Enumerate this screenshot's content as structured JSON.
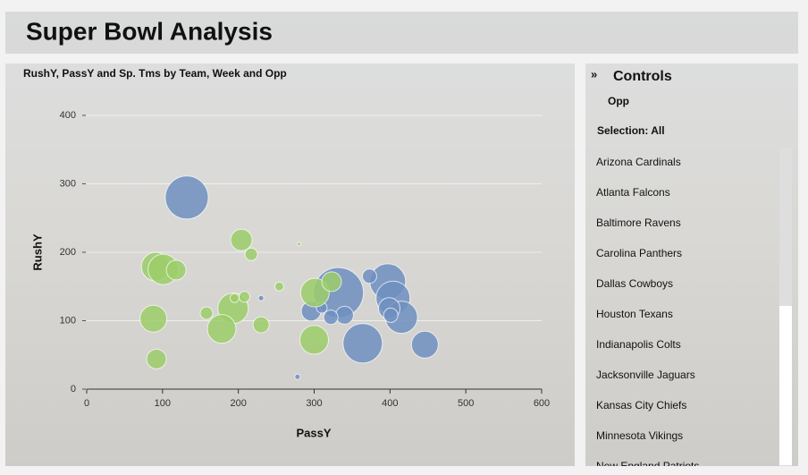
{
  "header": {
    "title": "Super Bowl Analysis"
  },
  "chart_data": {
    "type": "scatter",
    "title": "RushY, PassY and Sp. Tms by Team, Week and Opp",
    "xlabel": "PassY",
    "ylabel": "RushY",
    "xlim": [
      0,
      600
    ],
    "xticks": [
      0,
      100,
      200,
      300,
      400,
      500,
      600
    ],
    "ylim": [
      0,
      400
    ],
    "yticks": [
      0,
      100,
      200,
      300,
      400
    ],
    "grid": true,
    "series": [
      {
        "color": "#6f8fbf",
        "x": [
          132,
          332,
          364,
          397,
          404,
          415,
          446,
          373,
          340,
          296,
          322,
          399,
          401,
          278,
          230,
          310
        ],
        "y": [
          280,
          141,
          67,
          157,
          133,
          105,
          65,
          165,
          108,
          114,
          105,
          118,
          108,
          18,
          133,
          119
        ],
        "sizes": [
          24,
          28,
          22,
          20,
          19,
          18,
          15,
          8,
          10,
          11,
          8,
          12,
          8,
          3,
          3,
          6
        ]
      },
      {
        "color": "#9ccc6a",
        "x": [
          91,
          101,
          118,
          204,
          217,
          193,
          178,
          88,
          92,
          158,
          208,
          195,
          230,
          254,
          280,
          301,
          300,
          323
        ],
        "y": [
          179,
          175,
          174,
          218,
          197,
          118,
          88,
          103,
          44,
          111,
          135,
          133,
          94,
          150,
          212,
          141,
          72,
          157
        ],
        "sizes": [
          16,
          17,
          11,
          12,
          7,
          17,
          16,
          15,
          11,
          7,
          6,
          5,
          9,
          5,
          2,
          16,
          16,
          11
        ]
      }
    ]
  },
  "controls": {
    "title": "Controls",
    "field": "Opp",
    "selection": "Selection: All",
    "items": [
      "Arizona Cardinals",
      "Atlanta Falcons",
      "Baltimore Ravens",
      "Carolina Panthers",
      "Dallas Cowboys",
      "Houston Texans",
      "Indianapolis Colts",
      "Jacksonville Jaguars",
      "Kansas City Chiefs",
      "Minnesota Vikings",
      "New England Patriots"
    ]
  }
}
